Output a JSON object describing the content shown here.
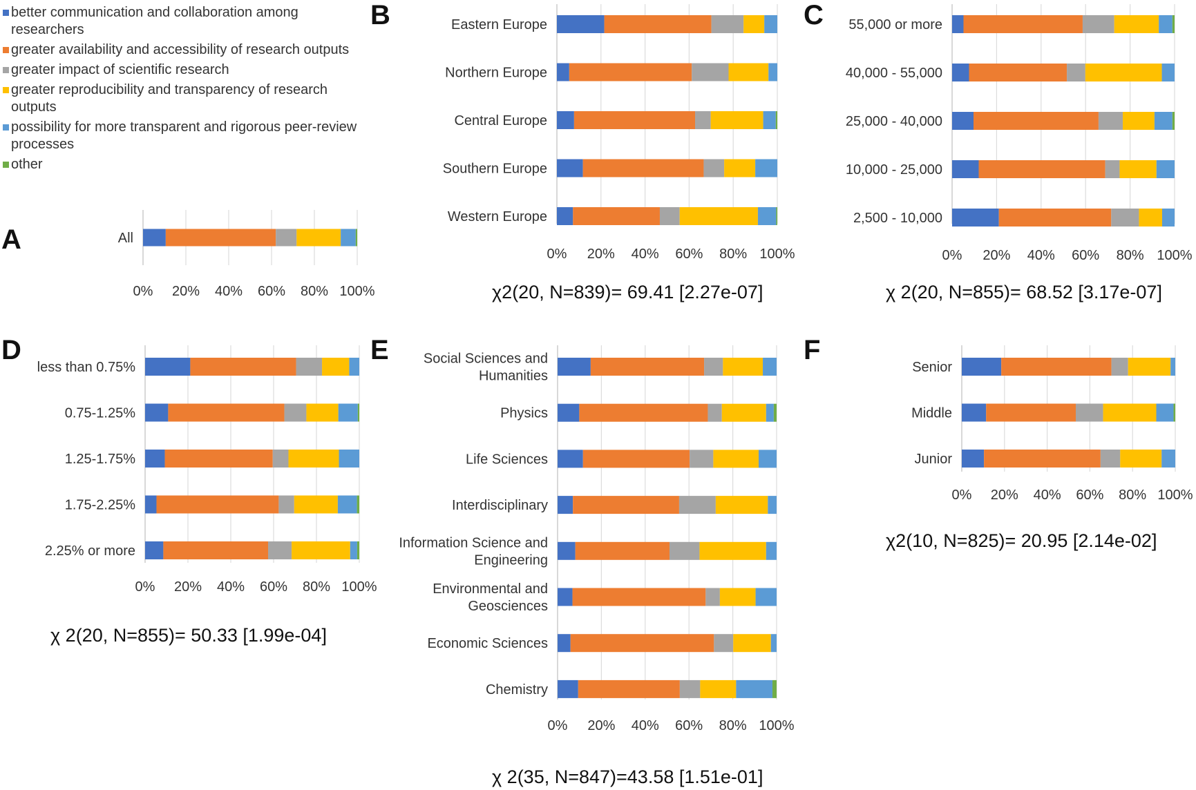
{
  "legend": [
    {
      "label": "better communication and collaboration among researchers",
      "color": "#4472C4"
    },
    {
      "label": "greater availability and accessibility of research outputs",
      "color": "#ED7D31"
    },
    {
      "label": "greater impact of scientific research",
      "color": "#A5A5A5"
    },
    {
      "label": "greater reproducibility and transparency of research outputs",
      "color": "#FFC000"
    },
    {
      "label": "possibility for more transparent and rigorous peer-review processes",
      "color": "#5B9BD5"
    },
    {
      "label": "other",
      "color": "#70AD47"
    }
  ],
  "panels": {
    "A": {
      "letter": "A",
      "stat": ""
    },
    "B": {
      "letter": "B",
      "stat": "χ2(20, N=839)= 69.41 [2.27e-07]"
    },
    "C": {
      "letter": "C",
      "stat": "χ 2(20, N=855)= 68.52 [3.17e-07]"
    },
    "D": {
      "letter": "D",
      "stat": "χ 2(20, N=855)= 50.33 [1.99e-04]"
    },
    "E": {
      "letter": "E",
      "stat": "χ 2(35, N=847)=43.58 [1.51e-01]"
    },
    "F": {
      "letter": "F",
      "stat": "χ2(10, N=825)= 20.95 [2.14e-02]"
    }
  },
  "chart_data": [
    {
      "panel": "A",
      "type": "bar",
      "orientation": "horizontal",
      "stacked": "percent",
      "x_ticks": [
        "0%",
        "20%",
        "40%",
        "60%",
        "80%",
        "100%"
      ],
      "xlim": [
        0,
        100
      ],
      "categories": [
        [
          "All"
        ]
      ],
      "values": [
        [
          10.6,
          51.4,
          9.7,
          20.6,
          7.0,
          0.7
        ]
      ]
    },
    {
      "panel": "B",
      "type": "bar",
      "orientation": "horizontal",
      "stacked": "percent",
      "x_ticks": [
        "0%",
        "20%",
        "40%",
        "60%",
        "80%",
        "100%"
      ],
      "xlim": [
        0,
        100
      ],
      "categories": [
        [
          "Eastern Europe"
        ],
        [
          "Northern Europe"
        ],
        [
          "Central Europe"
        ],
        [
          "Southern Europe"
        ],
        [
          "Western Europe"
        ]
      ],
      "values": [
        [
          21.5,
          48.6,
          14.6,
          9.4,
          5.9,
          0.0
        ],
        [
          5.6,
          55.6,
          16.7,
          18.1,
          4.0,
          0.0
        ],
        [
          7.8,
          54.9,
          7.1,
          23.8,
          5.7,
          0.7
        ],
        [
          11.8,
          54.8,
          9.3,
          14.1,
          10.0,
          0.0
        ],
        [
          7.3,
          39.4,
          9.0,
          35.5,
          8.3,
          0.5
        ]
      ]
    },
    {
      "panel": "C",
      "type": "bar",
      "orientation": "horizontal",
      "stacked": "percent",
      "x_ticks": [
        "0%",
        "20%",
        "40%",
        "60%",
        "80%",
        "100%"
      ],
      "xlim": [
        0,
        100
      ],
      "categories": [
        [
          "55,000 or more"
        ],
        [
          "40,000 - 55,000"
        ],
        [
          "25,000 - 40,000"
        ],
        [
          "10,000 - 25,000"
        ],
        [
          "2,500 - 10,000"
        ]
      ],
      "values": [
        [
          5.2,
          54.3,
          14.4,
          20.3,
          6.2,
          1.0
        ],
        [
          7.7,
          44.5,
          8.4,
          34.8,
          5.8,
          0.0
        ],
        [
          9.8,
          57.2,
          11.1,
          14.5,
          8.2,
          1.0
        ],
        [
          12.2,
          58.0,
          6.6,
          16.9,
          8.3,
          0.0
        ],
        [
          21.4,
          51.4,
          12.7,
          10.6,
          5.7,
          0.0
        ]
      ]
    },
    {
      "panel": "D",
      "type": "bar",
      "orientation": "horizontal",
      "stacked": "percent",
      "x_ticks": [
        "0%",
        "20%",
        "40%",
        "60%",
        "80%",
        "100%"
      ],
      "xlim": [
        0,
        100
      ],
      "categories": [
        [
          "less than 0.75%"
        ],
        [
          "0.75-1.25%"
        ],
        [
          "1.25-1.75%"
        ],
        [
          "1.75-2.25%"
        ],
        [
          "2.25% or more"
        ]
      ],
      "values": [
        [
          21.1,
          49.4,
          12.1,
          12.7,
          4.7,
          0.0
        ],
        [
          10.9,
          54.9,
          10.4,
          15.1,
          9.2,
          0.7
        ],
        [
          9.3,
          50.9,
          7.4,
          23.8,
          9.6,
          0.0
        ],
        [
          5.3,
          56.9,
          7.2,
          20.3,
          8.9,
          1.1
        ],
        [
          8.6,
          49.4,
          11.1,
          27.6,
          3.3,
          1.0
        ]
      ]
    },
    {
      "panel": "E",
      "type": "bar",
      "orientation": "horizontal",
      "stacked": "percent",
      "x_ticks": [
        "0%",
        "20%",
        "40%",
        "60%",
        "80%",
        "100%"
      ],
      "xlim": [
        0,
        100
      ],
      "categories": [
        [
          "Social Sciences and",
          "Humanities"
        ],
        [
          "Physics"
        ],
        [
          "Life Sciences"
        ],
        [
          "Interdisciplinary"
        ],
        [
          "Information Science and",
          "Engineering"
        ],
        [
          "Environmental and",
          "Geosciences"
        ],
        [
          "Economic Sciences"
        ],
        [
          "Chemistry"
        ]
      ],
      "values": [
        [
          15.1,
          51.8,
          8.6,
          18.2,
          6.3,
          0.0
        ],
        [
          9.9,
          58.7,
          6.4,
          20.2,
          3.5,
          1.3
        ],
        [
          11.6,
          48.7,
          10.8,
          20.7,
          8.2,
          0.0
        ],
        [
          7.0,
          48.5,
          16.7,
          23.8,
          4.0,
          0.0
        ],
        [
          8.1,
          43.0,
          13.7,
          30.4,
          4.8,
          0.0
        ],
        [
          6.8,
          60.8,
          6.5,
          16.3,
          9.6,
          0.0
        ],
        [
          5.9,
          65.5,
          8.8,
          17.2,
          2.6,
          0.0
        ],
        [
          9.4,
          46.4,
          9.3,
          16.4,
          16.6,
          1.9
        ]
      ]
    },
    {
      "panel": "F",
      "type": "bar",
      "orientation": "horizontal",
      "stacked": "percent",
      "x_ticks": [
        "0%",
        "20%",
        "40%",
        "60%",
        "80%",
        "100%"
      ],
      "xlim": [
        0,
        100
      ],
      "categories": [
        [
          "Senior"
        ],
        [
          "Middle"
        ],
        [
          "Junior"
        ]
      ],
      "values": [
        [
          18.5,
          51.6,
          7.8,
          19.9,
          2.2,
          0.0
        ],
        [
          11.4,
          42.0,
          12.8,
          24.9,
          8.1,
          0.8
        ],
        [
          10.4,
          54.6,
          9.2,
          19.4,
          6.4,
          0.0
        ]
      ]
    }
  ]
}
